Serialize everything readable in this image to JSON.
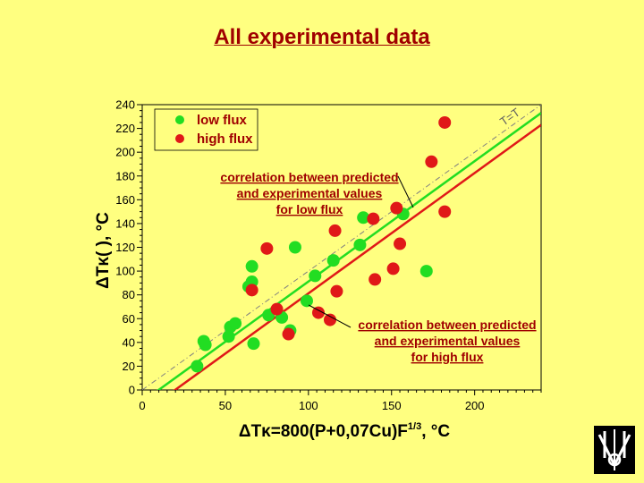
{
  "slide": {
    "title": "All experimental data"
  },
  "chart_data": {
    "type": "scatter",
    "xlim": [
      0,
      240
    ],
    "ylim": [
      0,
      240
    ],
    "x_ticks": [
      0,
      50,
      100,
      150,
      200
    ],
    "y_ticks": [
      0,
      20,
      40,
      60,
      80,
      100,
      120,
      140,
      160,
      180,
      200,
      220,
      240
    ],
    "xlabel": "ΔTκ=800(P+0,07Cu)F1/3, °C",
    "xlabel_main": "ΔTκ=800(P+0,07Cu)F",
    "xlabel_sup": "1/3",
    "xlabel_tail": ", °C",
    "ylabel": "ΔTκ(   ), °C",
    "grid": false,
    "legend": {
      "placement": "top-left"
    },
    "series": [
      {
        "name": "low flux",
        "color": "#22dd22",
        "points": [
          [
            33,
            20
          ],
          [
            37,
            41
          ],
          [
            38,
            38
          ],
          [
            52,
            45
          ],
          [
            53,
            53
          ],
          [
            56,
            56
          ],
          [
            64,
            87
          ],
          [
            66,
            91
          ],
          [
            66,
            104
          ],
          [
            67,
            39
          ],
          [
            76,
            63
          ],
          [
            84,
            61
          ],
          [
            89,
            50
          ],
          [
            92,
            120
          ],
          [
            99,
            75
          ],
          [
            104,
            96
          ],
          [
            115,
            109
          ],
          [
            131,
            122
          ],
          [
            133,
            145
          ],
          [
            157,
            148
          ],
          [
            171,
            100
          ]
        ]
      },
      {
        "name": "high flux",
        "color": "#e01818",
        "points": [
          [
            66,
            84
          ],
          [
            75,
            119
          ],
          [
            81,
            68
          ],
          [
            88,
            47
          ],
          [
            106,
            65
          ],
          [
            113,
            59
          ],
          [
            116,
            134
          ],
          [
            117,
            83
          ],
          [
            139,
            144
          ],
          [
            140,
            93
          ],
          [
            151,
            102
          ],
          [
            153,
            153
          ],
          [
            155,
            123
          ],
          [
            174,
            192
          ],
          [
            182,
            150
          ],
          [
            182,
            225
          ]
        ]
      }
    ],
    "lines": [
      {
        "kind": "identity",
        "label": "T=T",
        "style": "dash-dot",
        "color": "#808080",
        "from": [
          0,
          0
        ],
        "to": [
          240,
          240
        ]
      },
      {
        "kind": "fit",
        "series": "low flux",
        "color": "#22dd22",
        "from": [
          0,
          -10
        ],
        "to": [
          240,
          233
        ]
      },
      {
        "kind": "fit",
        "series": "high flux",
        "color": "#e01818",
        "from": [
          0,
          -20
        ],
        "to": [
          240,
          223
        ]
      }
    ],
    "annotations": [
      {
        "text_lines": [
          "correlation between predicted",
          "and experimental values",
          "for low flux"
        ]
      },
      {
        "text_lines": [
          "correlation between predicted",
          "and experimental values",
          "for high flux"
        ]
      }
    ]
  },
  "logo": {
    "name": "institute-logo"
  }
}
